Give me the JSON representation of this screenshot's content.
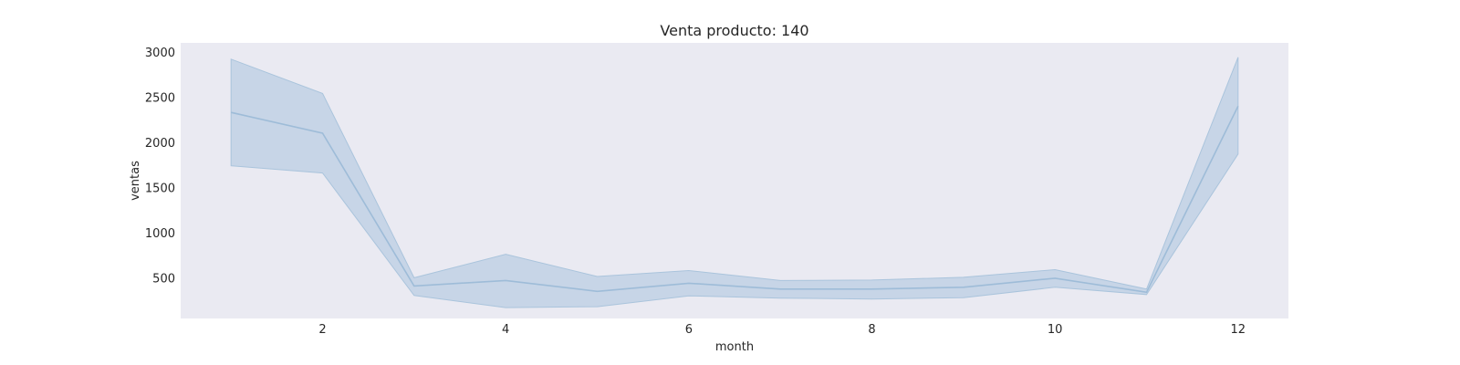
{
  "chart_data": {
    "type": "line",
    "title": "Venta producto: 140",
    "xlabel": "month",
    "ylabel": "ventas",
    "xlim": [
      0.45,
      12.55
    ],
    "ylim": [
      50,
      3100
    ],
    "xticks": [
      2,
      4,
      6,
      8,
      10,
      12
    ],
    "yticks": [
      500,
      1000,
      1500,
      2000,
      2500,
      3000
    ],
    "grid": false,
    "legend": "none",
    "colors": {
      "plot_bg": "#eaeaf2",
      "line": "#9ebcd8",
      "band": "#c3d3e5",
      "band_edge": "#aac4dc"
    },
    "x": [
      1,
      2,
      3,
      4,
      5,
      6,
      7,
      8,
      9,
      10,
      11,
      12
    ],
    "series": [
      {
        "values": [
          2330,
          2100,
          410,
          470,
          350,
          440,
          375,
          375,
          395,
          495,
          340,
          2400
        ],
        "lower": [
          1740,
          1660,
          305,
          170,
          180,
          300,
          275,
          265,
          280,
          395,
          315,
          1870
        ],
        "upper": [
          2920,
          2540,
          500,
          760,
          515,
          580,
          470,
          475,
          505,
          590,
          375,
          2940
        ]
      }
    ]
  }
}
